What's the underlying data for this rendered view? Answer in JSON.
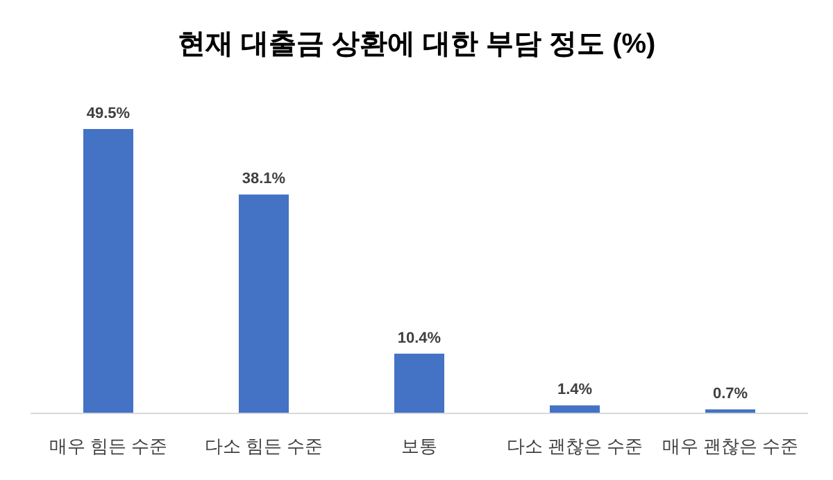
{
  "chart_data": {
    "type": "bar",
    "title": "현재 대출금 상환에 대한 부담 정도 (%)",
    "categories": [
      "매우 힘든 수준",
      "다소 힘든 수준",
      "보통",
      "다소 괜찮은 수준",
      "매우 괜찮은 수준"
    ],
    "values": [
      49.5,
      38.1,
      10.4,
      1.4,
      0.7
    ],
    "value_labels": [
      "49.5%",
      "38.1%",
      "10.4%",
      "1.4%",
      "0.7%"
    ],
    "color": "#4472c4",
    "grid": false,
    "legend": false
  }
}
